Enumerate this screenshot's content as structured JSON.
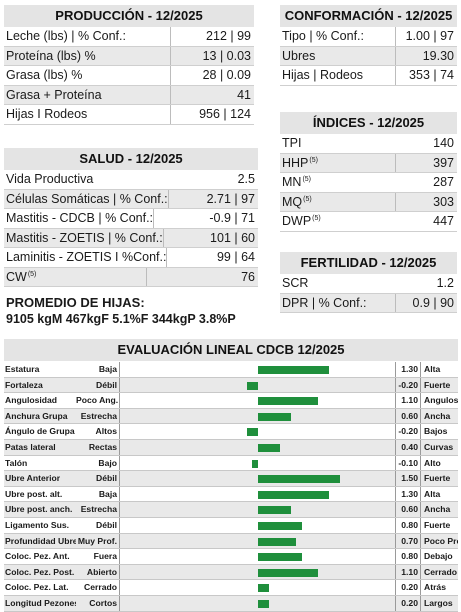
{
  "produccion": {
    "title": "PRODUCCIÓN - 12/2025",
    "rows": [
      {
        "label": "Leche (lbs) | % Conf.:",
        "value": "212 | 99"
      },
      {
        "label": "Proteína (lbs) %",
        "value": "13 | 0.03"
      },
      {
        "label": "Grasa (lbs) %",
        "value": "28 | 0.09"
      },
      {
        "label": "Grasa + Proteína",
        "value": "41"
      },
      {
        "label": "Hijas I Rodeos",
        "value": "956 | 124"
      }
    ]
  },
  "conformacion": {
    "title": "CONFORMACIÓN - 12/2025",
    "rows": [
      {
        "label": "Tipo | % Conf.:",
        "value": "1.00 | 97"
      },
      {
        "label": "Ubres",
        "value": "19.30"
      },
      {
        "label": "Hijas | Rodeos",
        "value": "353 | 74"
      }
    ]
  },
  "indices": {
    "title": "ÍNDICES - 12/2025",
    "rows": [
      {
        "label": "TPI",
        "sup": "",
        "value": "140"
      },
      {
        "label": "HHP",
        "sup": "(5)",
        "value": "397"
      },
      {
        "label": "MN",
        "sup": "(5)",
        "value": "287"
      },
      {
        "label": "MQ",
        "sup": "(5)",
        "value": "303"
      },
      {
        "label": "DWP",
        "sup": "(5)",
        "value": "447"
      }
    ]
  },
  "salud": {
    "title": "SALUD - 12/2025",
    "rows": [
      {
        "label": "Vida Productiva",
        "sup": "",
        "value": "2.5"
      },
      {
        "label": "Células Somáticas | % Conf.:",
        "sup": "",
        "value": "2.71 | 97"
      },
      {
        "label": "Mastitis - CDCB | % Conf.:",
        "sup": "",
        "value": "-0.9 | 71"
      },
      {
        "label": "Mastitis - ZOETIS | % Conf.:",
        "sup": "",
        "value": "101 | 60"
      },
      {
        "label": "Laminitis - ZOETIS I %Conf.:",
        "sup": "",
        "value": "99 | 64"
      },
      {
        "label": "CW",
        "sup": "(5)",
        "value": "76"
      }
    ]
  },
  "fertilidad": {
    "title": "FERTILIDAD - 12/2025",
    "rows": [
      {
        "label": "SCR",
        "value": "1.2"
      },
      {
        "label": "DPR | % Conf.:",
        "value": "0.9 | 90"
      }
    ]
  },
  "promedio": {
    "title": "PROMEDIO DE HIJAS:",
    "value": "9105 kgM 467kgF 5.1%F 344kgP 3.8%P"
  },
  "chart_data": {
    "type": "bar",
    "title": "EVALUACIÓN LINEAL CDCB 12/2025",
    "orientation": "horizontal",
    "xlim": [
      -2.5,
      2.5
    ],
    "grid": false,
    "legend": "none",
    "bar_color": "#1f8f3c",
    "categories": [
      "Estatura",
      "Fortaleza",
      "Angulosidad",
      "Anchura Grupa",
      "Ángulo de Grupa",
      "Patas lateral",
      "Talón",
      "Ubre Anterior",
      "Ubre post. alt.",
      "Ubre post. anch.",
      "Ligamento Sus.",
      "Profundidad Ubre",
      "Coloc. Pez. Ant.",
      "Coloc. Pez. Post.",
      "Coloc. Pez. Lat.",
      "Longitud Pezones"
    ],
    "low_labels": [
      "Baja",
      "Débil",
      "Poco Ang.",
      "Estrecha",
      "Altos",
      "Rectas",
      "Bajo",
      "Débil",
      "Baja",
      "Estrecha",
      "Débil",
      "Muy Prof.",
      "Fuera",
      "Abierto",
      "Cerrado",
      "Cortos"
    ],
    "high_labels": [
      "Alta",
      "Fuerte",
      "Angulosa",
      "Ancha",
      "Bajos",
      "Curvas",
      "Alto",
      "Fuerte",
      "Alta",
      "Ancha",
      "Fuerte",
      "Poco Prof.",
      "Debajo",
      "Cerrado",
      "Atrás",
      "Largos"
    ],
    "values": [
      1.3,
      -0.2,
      1.1,
      0.6,
      -0.2,
      0.4,
      -0.1,
      1.5,
      1.3,
      0.6,
      0.8,
      0.7,
      0.8,
      1.1,
      0.2,
      0.2
    ],
    "value_labels": [
      "1.30",
      "-0.20",
      "1.10",
      "0.60",
      "-0.20",
      "0.40",
      "-0.10",
      "1.50",
      "1.30",
      "0.60",
      "0.80",
      "0.70",
      "0.80",
      "1.10",
      "0.20",
      "0.20"
    ]
  }
}
